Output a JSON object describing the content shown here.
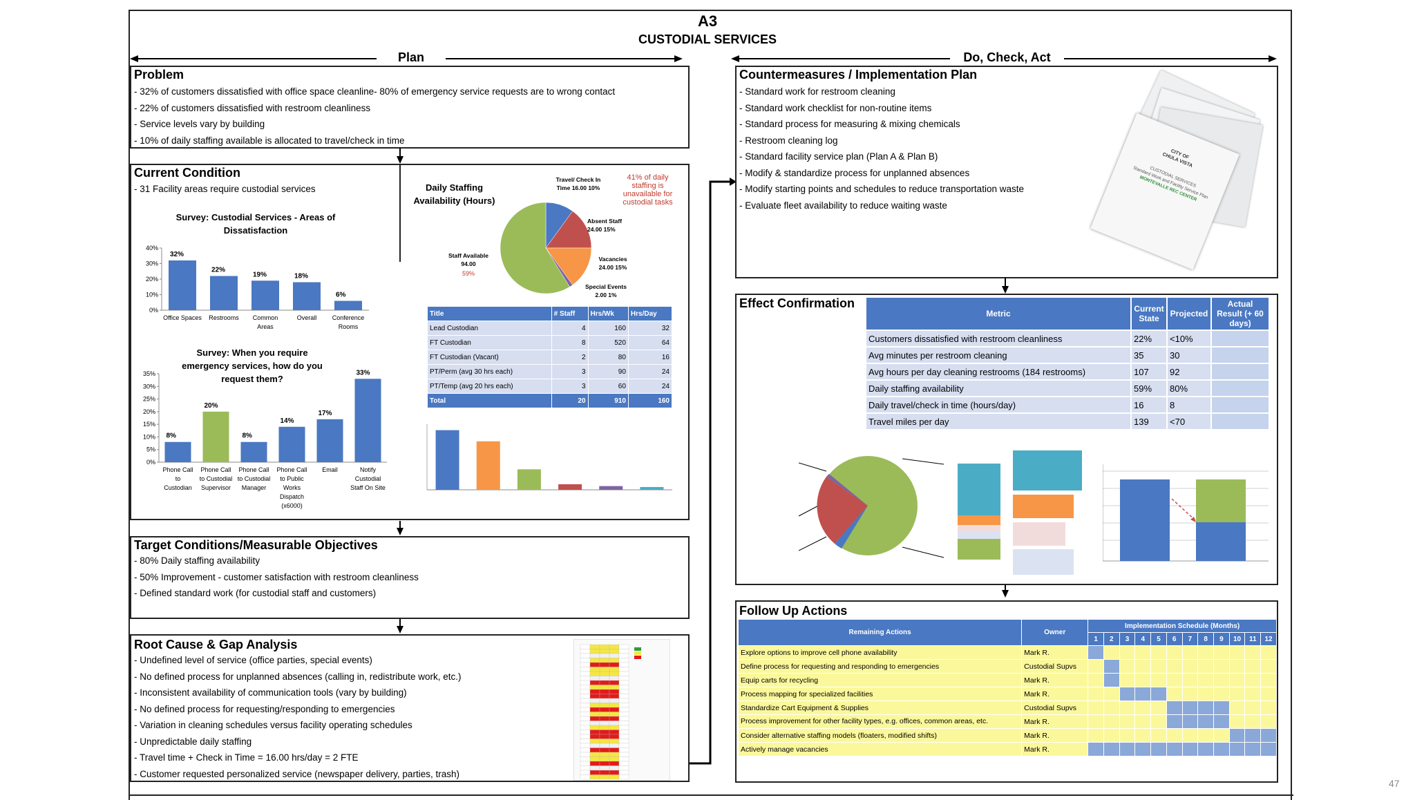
{
  "header": {
    "title": "A3",
    "subtitle": "CUSTODIAL SERVICES",
    "plan_label": "Plan",
    "do_label": "Do, Check, Act",
    "page_number": "47"
  },
  "problem": {
    "title": "Problem",
    "lines": [
      "- 32% of customers dissatisfied with office space cleanline- 80% of emergency service requests are to wrong contact",
      "- 22% of customers dissatisfied with restroom cleanliness",
      "- Service levels vary by building",
      "- 10% of daily staffing available is allocated to travel/check in time"
    ]
  },
  "current": {
    "title": "Current Condition",
    "line": "- 31   Facility areas require custodial services",
    "survey1_title": "Survey: Custodial  Services - Areas of Dissatisfaction",
    "survey2_title": "Survey: When you require emergency services, how do you request them?",
    "staff_title": "Daily Staffing Availability (Hours)",
    "note": "41% of daily staffing is unavailable for custodial tasks",
    "pie_labels": {
      "travel": "Travel/ Check In Time 16.00 10%",
      "absent": "Absent Staff 24.00  15%",
      "vacancies": "Vacancies 24.00  15%",
      "special": "Special Events 2.00 1%",
      "available": "Staff Available 94.00",
      "available_pct": "59%"
    },
    "staff_table": {
      "headers": [
        "Title",
        "# Staff",
        "Hrs/Wk",
        "Hrs/Day"
      ],
      "rows": [
        [
          "Lead Custodian",
          "4",
          "160",
          "32"
        ],
        [
          "FT Custodian",
          "8",
          "520",
          "64"
        ],
        [
          "FT Custodian (Vacant)",
          "2",
          "80",
          "16"
        ],
        [
          "PT/Perm (avg 30 hrs each)",
          "3",
          "90",
          "24"
        ],
        [
          "PT/Temp (avg 20 hrs each)",
          "3",
          "60",
          "24"
        ]
      ],
      "total": [
        "Total",
        "20",
        "910",
        "160"
      ]
    }
  },
  "chart_data": [
    {
      "type": "bar",
      "title": "Survey: Custodial  Services - Areas of Dissatisfaction",
      "categories": [
        "Office Spaces",
        "Restrooms",
        "Common Areas",
        "Overall",
        "Conference Rooms"
      ],
      "values": [
        32,
        22,
        19,
        18,
        6
      ],
      "data_labels": [
        "32%",
        "22%",
        "19%",
        "18%",
        "6%"
      ],
      "ylim": [
        0,
        40
      ],
      "yticks": [
        "0%",
        "10%",
        "20%",
        "30%",
        "40%"
      ],
      "color": "#4a78c2"
    },
    {
      "type": "bar",
      "title": "Survey: When you require emergency services, how do you request them?",
      "categories": [
        "Phone Call to Custodian",
        "Phone Call to Custodial Supervisor",
        "Phone Call to Custodial Manager",
        "Phone Call to Public Works Dispatch (x6000)",
        "Email",
        "Notify Custodial Staff On Site"
      ],
      "values": [
        8,
        20,
        8,
        14,
        17,
        33
      ],
      "data_labels": [
        "8%",
        "20%",
        "8%",
        "14%",
        "17%",
        "33%"
      ],
      "ylim": [
        0,
        35
      ],
      "yticks": [
        "0%",
        "5%",
        "10%",
        "15%",
        "20%",
        "25%",
        "30%",
        "35%"
      ],
      "colors": [
        "#4a78c2",
        "#9bbb59",
        "#4a78c2",
        "#4a78c2",
        "#4a78c2",
        "#4a78c2"
      ]
    },
    {
      "type": "pie",
      "title": "Daily Staffing Availability (Hours)",
      "slices": [
        {
          "name": "Travel/ Check In Time",
          "value": 16,
          "color": "#4a78c2"
        },
        {
          "name": "Absent Staff",
          "value": 24,
          "color": "#c0504d"
        },
        {
          "name": "Vacancies",
          "value": 24,
          "color": "#f79646"
        },
        {
          "name": "Special Events",
          "value": 2,
          "color": "#8064a2"
        },
        {
          "name": "Staff Available",
          "value": 94,
          "color": "#9bbb59"
        }
      ]
    },
    {
      "type": "bar",
      "values": [
        32,
        26,
        11,
        3,
        2,
        1.5
      ],
      "colors": [
        "#4a78c2",
        "#f79646",
        "#9bbb59",
        "#c0504d",
        "#8064a2",
        "#4bacc6"
      ]
    }
  ],
  "target": {
    "title": "Target Conditions/Measurable Objectives",
    "lines": [
      "- 80% Daily staffing availability",
      "- 50% Improvement - customer satisfaction with restroom cleanliness",
      "- Defined standard work (for custodial staff and customers)"
    ]
  },
  "root": {
    "title": "Root Cause & Gap Analysis",
    "lines": [
      "- Undefined level of service (office parties, special events)",
      "- No defined process for unplanned absences (calling in, redistribute work, etc.)",
      "- Inconsistent availability of communication tools (vary by building)",
      "- No defined process for requesting/responding to emergencies",
      "- Variation in cleaning schedules versus facility operating schedules",
      "- Unpredictable daily staffing",
      "- Travel time + Check in Time = 16.00 hrs/day = 2 FTE",
      "- Customer requested personalized service (newspaper delivery, parties, trash)"
    ]
  },
  "counter": {
    "title": "Countermeasures / Implementation Plan",
    "lines": [
      "- Standard work for restroom cleaning",
      "- Standard work checklist for non-routine items",
      "- Standard process for measuring & mixing chemicals",
      "- Restroom cleaning log",
      "- Standard facility service plan (Plan A & Plan B)",
      "- Modify & standardize process for unplanned absences",
      "- Modify starting points and schedules to reduce transportation waste",
      "- Evaluate fleet availability to reduce waiting waste"
    ],
    "photo_text": [
      "CITY OF",
      "CHULA VISTA",
      "CUSTODIAL SERVICES",
      "Standard Work and Facility Service Plan",
      "MONTEVALLE REC CENTER"
    ]
  },
  "effect": {
    "title": "Effect Confirmation",
    "headers": [
      "Metric",
      "Current State",
      "Projected",
      "Actual Result (+ 60 days)"
    ],
    "rows": [
      [
        "Customers dissatisfied with restroom cleanliness",
        "22%",
        "<10%",
        ""
      ],
      [
        "Avg minutes per restroom cleaning",
        "35",
        "30",
        ""
      ],
      [
        "Avg hours per day cleaning restrooms (184 restrooms)",
        "107",
        "92",
        ""
      ],
      [
        "Daily staffing availability",
        "59%",
        "80%",
        ""
      ],
      [
        "Daily travel/check in time (hours/day)",
        "16",
        "8",
        ""
      ],
      [
        "Travel miles per day",
        "139",
        "<70",
        ""
      ]
    ]
  },
  "followup": {
    "title": "Follow Up Actions",
    "col_actions": "Remaining Actions",
    "col_owner": "Owner",
    "col_schedule": "Implementation Schedule (Months)",
    "months": [
      "1",
      "2",
      "3",
      "4",
      "5",
      "6",
      "7",
      "8",
      "9",
      "10",
      "11",
      "12"
    ],
    "rows": [
      {
        "action": "Explore options to improve cell phone availability",
        "owner": "Mark R.",
        "on": [
          1
        ]
      },
      {
        "action": "Define process for requesting and responding to emergencies",
        "owner": "Custodial Supvs",
        "on": [
          2
        ]
      },
      {
        "action": "Equip carts for recycling",
        "owner": "Mark R.",
        "on": [
          2
        ]
      },
      {
        "action": "Process mapping for specialized facilities",
        "owner": "Mark R.",
        "on": [
          3,
          4,
          5
        ]
      },
      {
        "action": "Standardize Cart Equipment & Supplies",
        "owner": "Custodial Supvs",
        "on": [
          6,
          7,
          8,
          9
        ]
      },
      {
        "action": "Process improvement for other facility types, e.g. offices, common areas, etc.",
        "owner": "Mark R.",
        "on": [
          6,
          7,
          8,
          9
        ]
      },
      {
        "action": "Consider alternative staffing models (floaters, modified shifts)",
        "owner": "Mark R.",
        "on": [
          10,
          11,
          12
        ]
      },
      {
        "action": "Actively manage vacancies",
        "owner": "Mark R.",
        "on": [
          1,
          2,
          3,
          4,
          5,
          6,
          7,
          8,
          9,
          10,
          11,
          12
        ]
      }
    ]
  }
}
